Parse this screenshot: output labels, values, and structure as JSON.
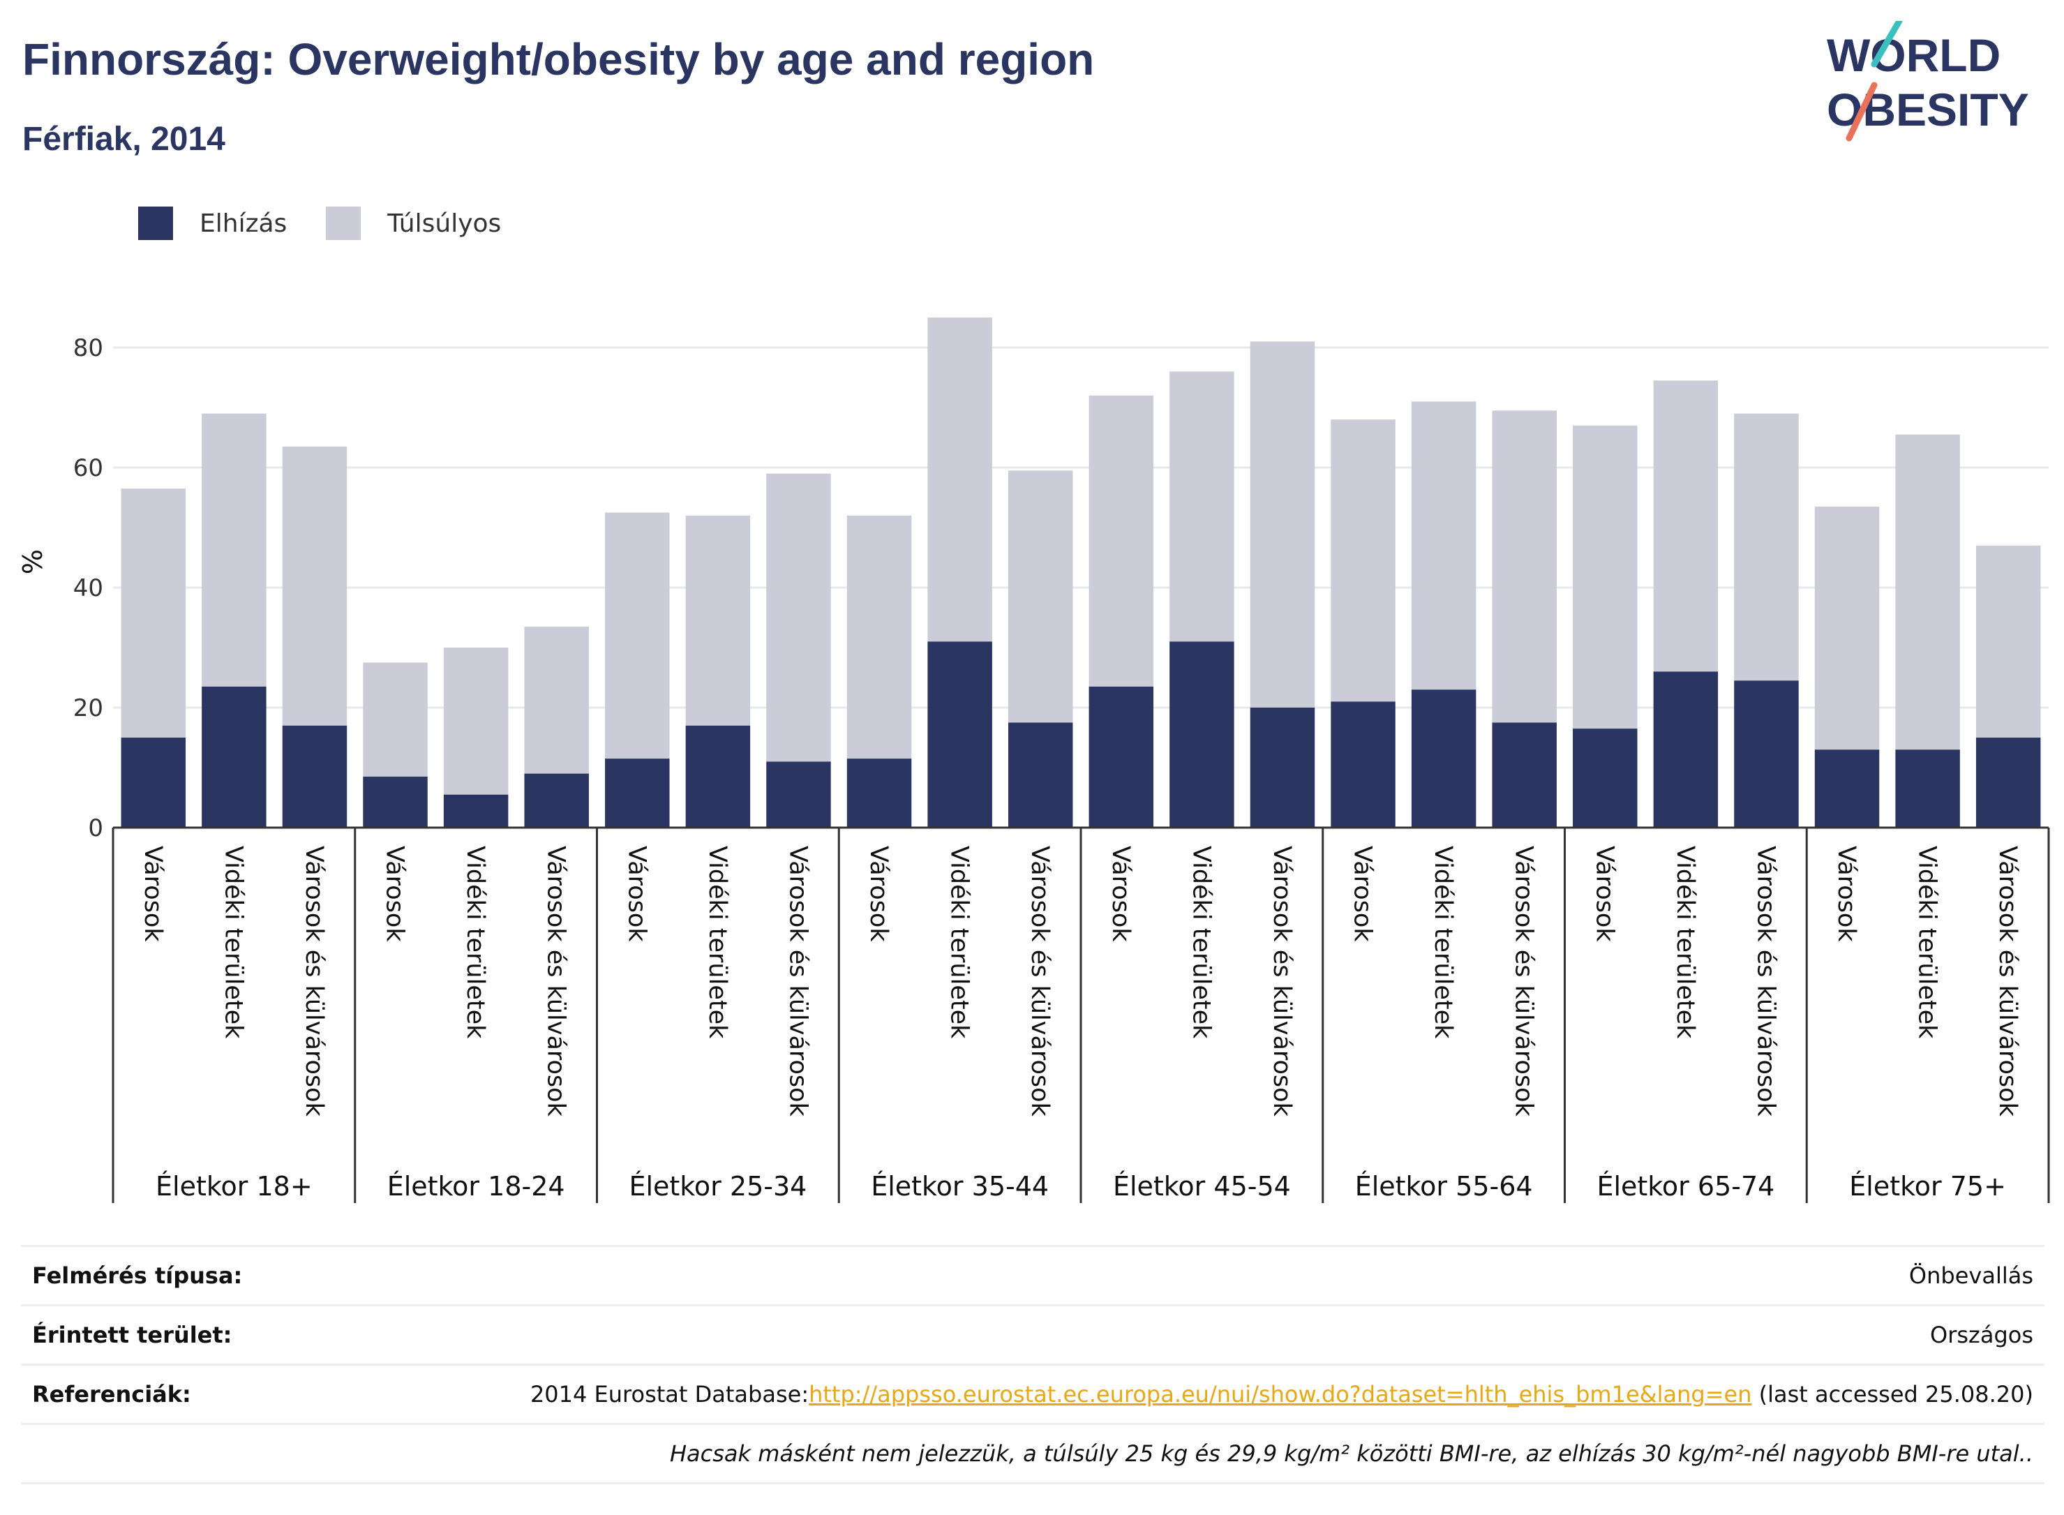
{
  "header": {
    "title": "Finnország: Overweight/obesity by age and region",
    "subtitle": "Férfiak, 2014"
  },
  "logo": {
    "line1": "WORLD",
    "line2": "OBESITY"
  },
  "legend": {
    "obesity": "Elhízás",
    "overweight": "Túlsúlyos"
  },
  "colors": {
    "obesity": "#2a3562",
    "overweight": "#cbccd8",
    "grid": "#e6e8ee",
    "axis": "#333333",
    "link": "#e6a817"
  },
  "chart_data": {
    "type": "bar",
    "stacked": true,
    "ylabel": "%",
    "ylim": [
      0,
      88
    ],
    "yticks": [
      0,
      20,
      40,
      60,
      80
    ],
    "grid": true,
    "legend_position": "top-left",
    "groups": [
      {
        "label": "Életkor 18+",
        "categories": [
          "Városok",
          "Vidéki területek",
          "Városok és külvárosok"
        ],
        "obesity": [
          15,
          23.5,
          17
        ],
        "total": [
          56.5,
          69,
          63.5
        ]
      },
      {
        "label": "Életkor 18-24",
        "categories": [
          "Városok",
          "Vidéki területek",
          "Városok és külvárosok"
        ],
        "obesity": [
          8.5,
          5.5,
          9
        ],
        "total": [
          27.5,
          30,
          33.5
        ]
      },
      {
        "label": "Életkor 25-34",
        "categories": [
          "Városok",
          "Vidéki területek",
          "Városok és külvárosok"
        ],
        "obesity": [
          11.5,
          17,
          11
        ],
        "total": [
          52.5,
          52,
          59
        ]
      },
      {
        "label": "Életkor 35-44",
        "categories": [
          "Városok",
          "Vidéki területek",
          "Városok és külvárosok"
        ],
        "obesity": [
          11.5,
          31,
          17.5
        ],
        "total": [
          52,
          85,
          59.5
        ]
      },
      {
        "label": "Életkor 45-54",
        "categories": [
          "Városok",
          "Vidéki területek",
          "Városok és külvárosok"
        ],
        "obesity": [
          23.5,
          31,
          20
        ],
        "total": [
          72,
          76,
          81
        ]
      },
      {
        "label": "Életkor 55-64",
        "categories": [
          "Városok",
          "Vidéki területek",
          "Városok és külvárosok"
        ],
        "obesity": [
          21,
          23,
          17.5
        ],
        "total": [
          68,
          71,
          69.5
        ]
      },
      {
        "label": "Életkor 65-74",
        "categories": [
          "Városok",
          "Vidéki területek",
          "Városok és külvárosok"
        ],
        "obesity": [
          16.5,
          26,
          24.5
        ],
        "total": [
          67,
          74.5,
          69
        ]
      },
      {
        "label": "Életkor 75+",
        "categories": [
          "Városok",
          "Vidéki területek",
          "Városok és külvárosok"
        ],
        "obesity": [
          13,
          13,
          15
        ],
        "total": [
          53.5,
          65.5,
          47
        ]
      }
    ]
  },
  "info": {
    "survey_label": "Felmérés típusa:",
    "survey_value": "Önbevallás",
    "area_label": "Érintett terület:",
    "area_value": "Országos",
    "ref_label": "Referenciák:",
    "ref_prefix": "2014 Eurostat Database:",
    "ref_link": "http://appsso.eurostat.ec.europa.eu/nui/show.do?dataset=hlth_ehis_bm1e&lang=en",
    "ref_suffix": " (last accessed 25.08.20)",
    "note": "Hacsak másként nem jelezzük, a túlsúly 25 kg és 29,9 kg/m² közötti BMI-re, az elhízás 30 kg/m²-nél nagyobb BMI-re utal.."
  }
}
